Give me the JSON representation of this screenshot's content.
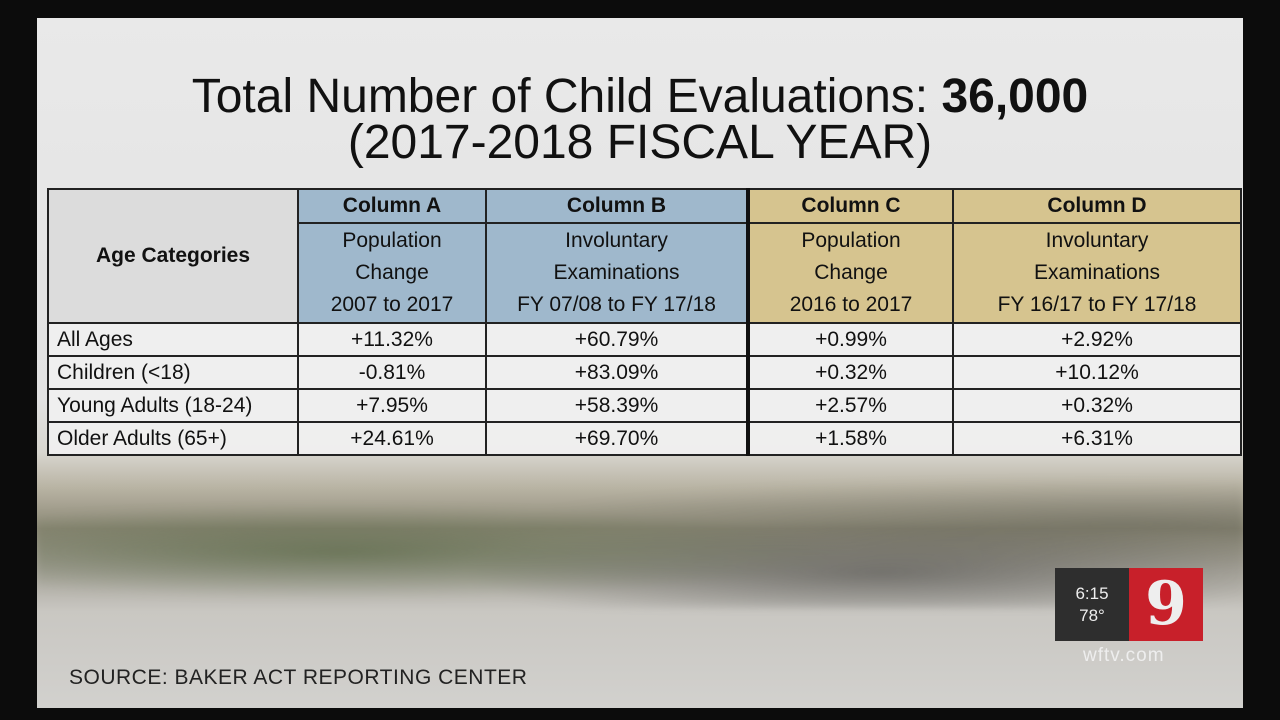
{
  "title": {
    "line1_prefix": "Total Number of Child Evaluations: ",
    "line1_value": "36,000",
    "line2": "(2017-2018 FISCAL YEAR)"
  },
  "table": {
    "row_header": "Age Categories",
    "columns": [
      {
        "name": "Column A",
        "lines": [
          "Population",
          "Change",
          "2007 to 2017"
        ],
        "color": "#9fb8cc"
      },
      {
        "name": "Column B",
        "lines": [
          "Involuntary",
          "Examinations",
          "FY 07/08 to FY 17/18"
        ],
        "color": "#9fb8cc"
      },
      {
        "name": "Column C",
        "lines": [
          "Population",
          "Change",
          "2016 to 2017"
        ],
        "color": "#d6c48f"
      },
      {
        "name": "Column D",
        "lines": [
          "Involuntary",
          "Examinations",
          "FY 16/17 to FY 17/18"
        ],
        "color": "#d6c48f"
      }
    ],
    "rows": [
      {
        "label": "All Ages",
        "values": [
          "+11.32%",
          "+60.79%",
          "+0.99%",
          "+2.92%"
        ]
      },
      {
        "label": "Children (<18)",
        "values": [
          "-0.81%",
          "+83.09%",
          "+0.32%",
          "+10.12%"
        ]
      },
      {
        "label": "Young Adults (18-24)",
        "values": [
          "+7.95%",
          "+58.39%",
          "+2.57%",
          "+0.32%"
        ]
      },
      {
        "label": "Older Adults (65+)",
        "values": [
          "+24.61%",
          "+69.70%",
          "+1.58%",
          "+6.31%"
        ]
      }
    ]
  },
  "source": "SOURCE: BAKER ACT REPORTING CENTER",
  "station_bug": {
    "time": "6:15",
    "temperature": "78°",
    "logo": "9",
    "website": "wftv.com",
    "logo_color": "#c8202a"
  }
}
